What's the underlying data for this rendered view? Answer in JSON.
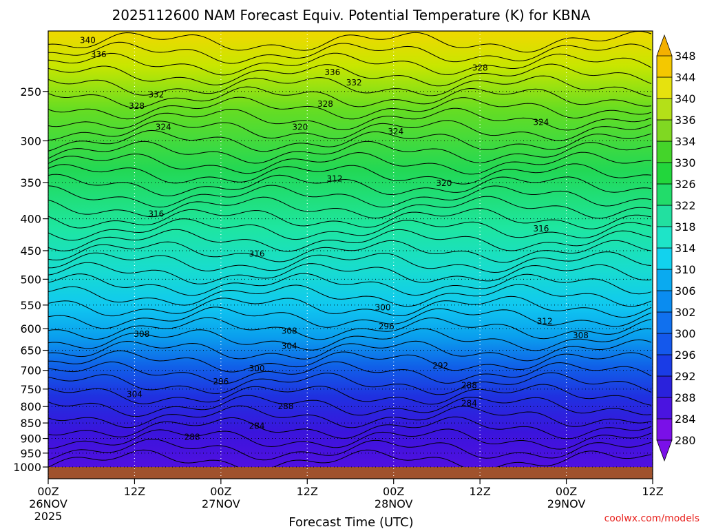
{
  "chart_data": {
    "type": "heatmap",
    "title": "2025112600 NAM Forecast Equiv. Potential Temperature (K) for KBNA",
    "xlabel": "Forecast Time (UTC)",
    "ylabel": "",
    "x_ticks": [
      {
        "hour": 0,
        "label": "00Z",
        "sub": "26NOV",
        "sub2": "2025"
      },
      {
        "hour": 12,
        "label": "12Z",
        "sub": "",
        "sub2": ""
      },
      {
        "hour": 24,
        "label": "00Z",
        "sub": "27NOV",
        "sub2": ""
      },
      {
        "hour": 36,
        "label": "12Z",
        "sub": "",
        "sub2": ""
      },
      {
        "hour": 48,
        "label": "00Z",
        "sub": "28NOV",
        "sub2": ""
      },
      {
        "hour": 60,
        "label": "12Z",
        "sub": "",
        "sub2": ""
      },
      {
        "hour": 72,
        "label": "00Z",
        "sub": "29NOV",
        "sub2": ""
      },
      {
        "hour": 84,
        "label": "12Z",
        "sub": "",
        "sub2": ""
      }
    ],
    "xlim": [
      0,
      84
    ],
    "y_ticks": [
      250,
      300,
      350,
      400,
      450,
      500,
      550,
      600,
      650,
      700,
      750,
      800,
      850,
      900,
      950,
      1000
    ],
    "ylim_hpa": [
      200,
      1000
    ],
    "y_scale": "log-pressure",
    "colorbar_levels": [
      280,
      284,
      288,
      292,
      296,
      300,
      302,
      306,
      310,
      314,
      318,
      322,
      326,
      330,
      334,
      336,
      340,
      344,
      348
    ],
    "contour_labels": [
      {
        "value": "340",
        "hour": 5.5,
        "hpa": 207
      },
      {
        "value": "336",
        "hour": 7,
        "hpa": 218
      },
      {
        "value": "332",
        "hour": 15,
        "hpa": 253
      },
      {
        "value": "328",
        "hour": 12.3,
        "hpa": 264
      },
      {
        "value": "324",
        "hour": 16,
        "hpa": 285
      },
      {
        "value": "336",
        "hour": 39.5,
        "hpa": 233
      },
      {
        "value": "332",
        "hour": 42.5,
        "hpa": 242
      },
      {
        "value": "328",
        "hour": 38.5,
        "hpa": 262
      },
      {
        "value": "320",
        "hour": 35,
        "hpa": 285
      },
      {
        "value": "324",
        "hour": 48.3,
        "hpa": 290
      },
      {
        "value": "328",
        "hour": 60,
        "hpa": 229
      },
      {
        "value": "324",
        "hour": 68.5,
        "hpa": 280
      },
      {
        "value": "320",
        "hour": 55,
        "hpa": 351
      },
      {
        "value": "312",
        "hour": 39.8,
        "hpa": 345
      },
      {
        "value": "316",
        "hour": 15,
        "hpa": 393
      },
      {
        "value": "316",
        "hour": 29,
        "hpa": 455
      },
      {
        "value": "316",
        "hour": 68.5,
        "hpa": 415
      },
      {
        "value": "300",
        "hour": 46.5,
        "hpa": 555
      },
      {
        "value": "296",
        "hour": 47,
        "hpa": 595
      },
      {
        "value": "312",
        "hour": 69,
        "hpa": 584
      },
      {
        "value": "308",
        "hour": 13,
        "hpa": 612
      },
      {
        "value": "308",
        "hour": 33.5,
        "hpa": 605
      },
      {
        "value": "304",
        "hour": 33.5,
        "hpa": 640
      },
      {
        "value": "308",
        "hour": 74,
        "hpa": 615
      },
      {
        "value": "300",
        "hour": 29,
        "hpa": 695
      },
      {
        "value": "292",
        "hour": 54.5,
        "hpa": 688
      },
      {
        "value": "296",
        "hour": 24,
        "hpa": 730
      },
      {
        "value": "304",
        "hour": 12,
        "hpa": 765
      },
      {
        "value": "288",
        "hour": 58.5,
        "hpa": 740
      },
      {
        "value": "288",
        "hour": 33,
        "hpa": 800
      },
      {
        "value": "284",
        "hour": 58.5,
        "hpa": 790
      },
      {
        "value": "284",
        "hour": 29,
        "hpa": 860
      },
      {
        "value": "288",
        "hour": 20,
        "hpa": 895
      }
    ],
    "credit": "coolwx.com/models"
  }
}
